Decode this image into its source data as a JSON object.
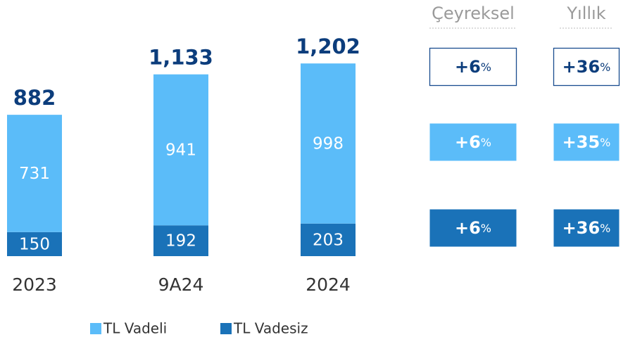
{
  "chart_data": {
    "type": "stacked_bar",
    "categories": [
      "2023",
      "9A24",
      "2024"
    ],
    "series": [
      {
        "name": "TL Vadesiz",
        "color": "#1a72b8",
        "values": [
          150,
          192,
          203
        ]
      },
      {
        "name": "TL Vadeli",
        "color": "#5bbcf9",
        "values": [
          731,
          941,
          998
        ]
      }
    ],
    "totals": [
      882,
      1133,
      1202
    ],
    "total_labels": [
      "882",
      "1,133",
      "1,202"
    ],
    "total_color": "#0c3d7c",
    "growth": {
      "headers": [
        "Çeyreksel",
        "Yıllık"
      ],
      "rows": [
        {
          "style": "outline",
          "cells": [
            "+6%",
            "+36%"
          ]
        },
        {
          "style": "light",
          "cells": [
            "+6%",
            "+35%"
          ]
        },
        {
          "style": "dark",
          "cells": [
            "+6%",
            "+36%"
          ]
        }
      ]
    }
  }
}
